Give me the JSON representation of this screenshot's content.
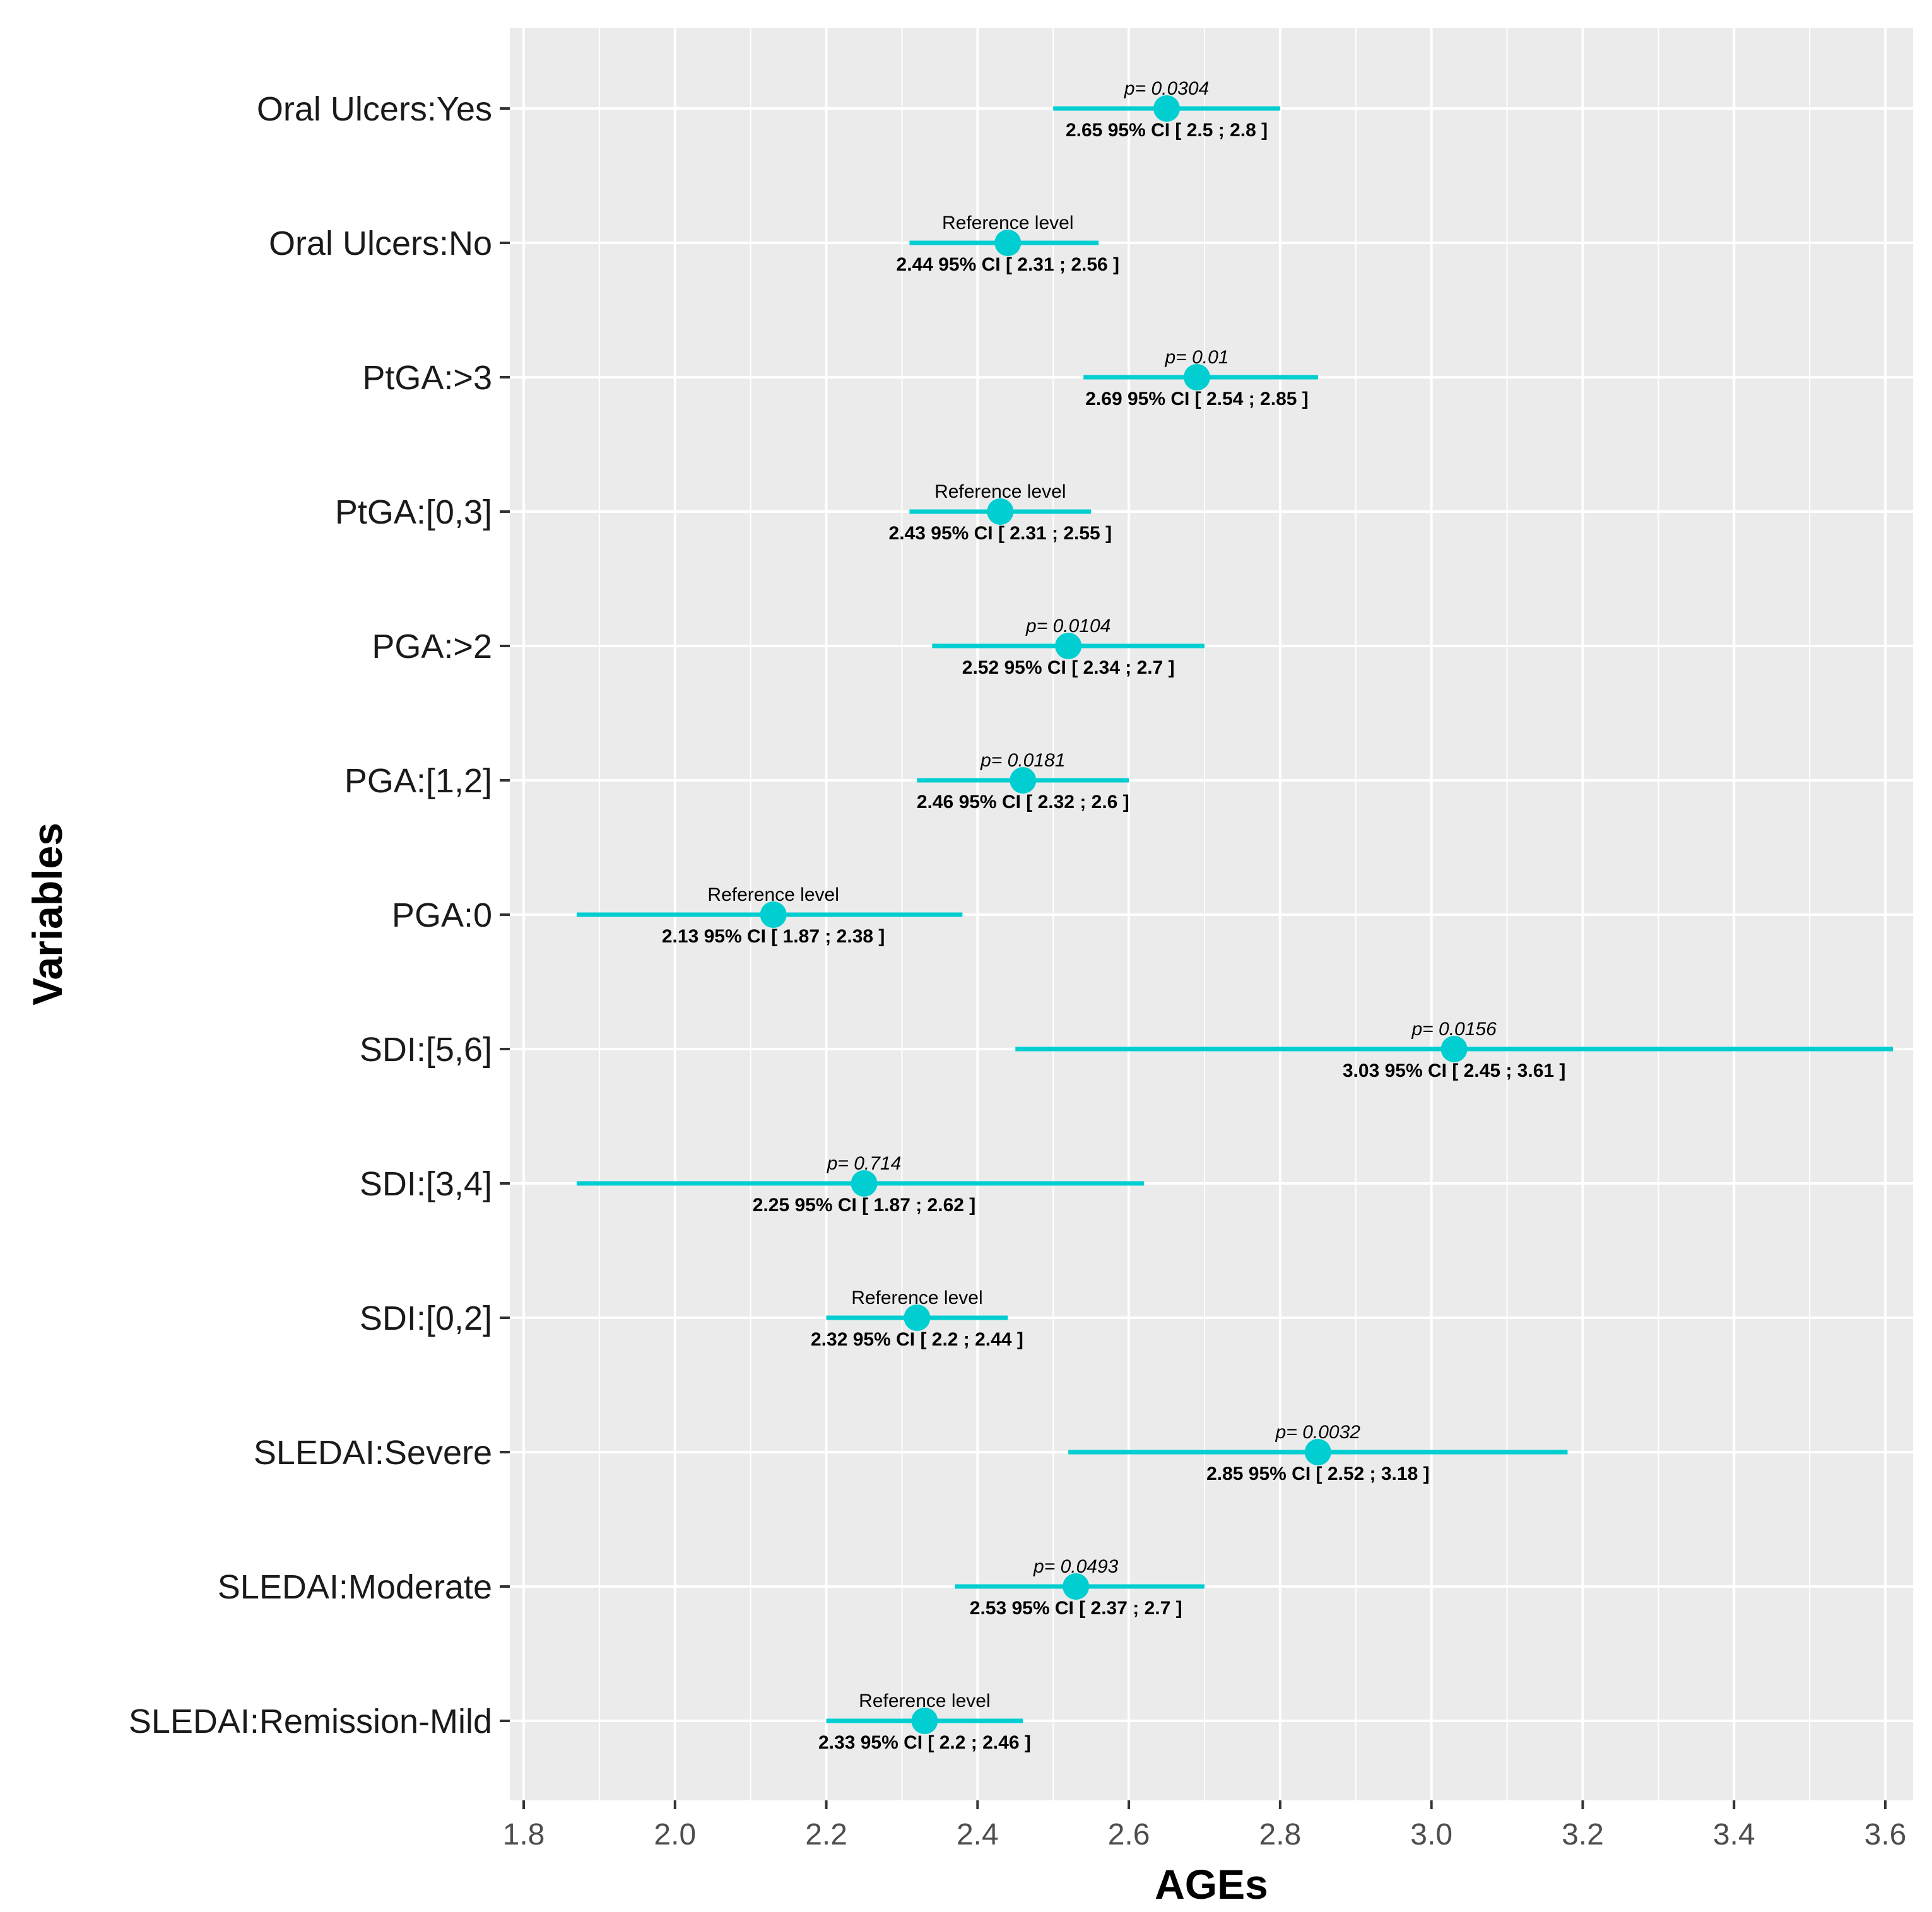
{
  "chart_data": {
    "type": "forest",
    "xlabel": "AGEs",
    "ylabel": "Variables",
    "xlim": [
      1.78,
      3.72
    ],
    "xticks": [
      1.8,
      2.0,
      2.2,
      2.4,
      2.6,
      2.8,
      3.0,
      3.2,
      3.4,
      3.6
    ],
    "xtick_labels": [
      "1.8",
      "2.0",
      "2.2",
      "2.4",
      "2.6",
      "2.8",
      "3.0",
      "3.2",
      "3.4",
      "3.6"
    ],
    "grid": true,
    "colors": {
      "marker": "#00CED1",
      "panel": "#EBEBEB",
      "grid": "#FFFFFF",
      "p_significant": "#000000",
      "p_nonsignificant": "#666666"
    },
    "rows": [
      {
        "label": "Oral Ulcers:Yes",
        "estimate": 2.65,
        "ci_low": 2.5,
        "ci_high": 2.8,
        "top_text": "p= 0.0304",
        "bottom_text": "2.65 95% CI [ 2.5 ; 2.8 ]",
        "is_p": true,
        "significant": true
      },
      {
        "label": "Oral Ulcers:No",
        "estimate": 2.44,
        "ci_low": 2.31,
        "ci_high": 2.56,
        "top_text": "Reference level",
        "bottom_text": "2.44 95% CI [ 2.31 ; 2.56 ]",
        "is_p": false,
        "significant": true
      },
      {
        "label": "PtGA:>3",
        "estimate": 2.69,
        "ci_low": 2.54,
        "ci_high": 2.85,
        "top_text": "p= 0.01",
        "bottom_text": "2.69 95% CI [ 2.54 ; 2.85 ]",
        "is_p": true,
        "significant": true
      },
      {
        "label": "PtGA:[0,3]",
        "estimate": 2.43,
        "ci_low": 2.31,
        "ci_high": 2.55,
        "top_text": "Reference level",
        "bottom_text": "2.43 95% CI [ 2.31 ; 2.55 ]",
        "is_p": false,
        "significant": true
      },
      {
        "label": "PGA:>2",
        "estimate": 2.52,
        "ci_low": 2.34,
        "ci_high": 2.7,
        "top_text": "p= 0.0104",
        "bottom_text": "2.52 95% CI [ 2.34 ; 2.7 ]",
        "is_p": true,
        "significant": true
      },
      {
        "label": "PGA:[1,2]",
        "estimate": 2.46,
        "ci_low": 2.32,
        "ci_high": 2.6,
        "top_text": "p= 0.0181",
        "bottom_text": "2.46 95% CI [ 2.32 ; 2.6 ]",
        "is_p": true,
        "significant": true
      },
      {
        "label": "PGA:0",
        "estimate": 2.13,
        "ci_low": 1.87,
        "ci_high": 2.38,
        "top_text": "Reference level",
        "bottom_text": "2.13 95% CI [ 1.87 ; 2.38 ]",
        "is_p": false,
        "significant": true
      },
      {
        "label": "SDI:[5,6]",
        "estimate": 3.03,
        "ci_low": 2.45,
        "ci_high": 3.61,
        "top_text": "p= 0.0156",
        "bottom_text": "3.03 95% CI [ 2.45 ; 3.61 ]",
        "is_p": true,
        "significant": true
      },
      {
        "label": "SDI:[3,4]",
        "estimate": 2.25,
        "ci_low": 1.87,
        "ci_high": 2.62,
        "top_text": "p= 0.714",
        "bottom_text": "2.25 95% CI [ 1.87 ; 2.62 ]",
        "is_p": true,
        "significant": false
      },
      {
        "label": "SDI:[0,2]",
        "estimate": 2.32,
        "ci_low": 2.2,
        "ci_high": 2.44,
        "top_text": "Reference level",
        "bottom_text": "2.32 95% CI [ 2.2 ; 2.44 ]",
        "is_p": false,
        "significant": true
      },
      {
        "label": "SLEDAI:Severe",
        "estimate": 2.85,
        "ci_low": 2.52,
        "ci_high": 3.18,
        "top_text": "p= 0.0032",
        "bottom_text": "2.85 95% CI [ 2.52 ; 3.18 ]",
        "is_p": true,
        "significant": true
      },
      {
        "label": "SLEDAI:Moderate",
        "estimate": 2.53,
        "ci_low": 2.37,
        "ci_high": 2.7,
        "top_text": "p= 0.0493",
        "bottom_text": "2.53 95% CI [ 2.37 ; 2.7 ]",
        "is_p": true,
        "significant": true
      },
      {
        "label": "SLEDAI:Remission-Mild",
        "estimate": 2.33,
        "ci_low": 2.2,
        "ci_high": 2.46,
        "top_text": "Reference level",
        "bottom_text": "2.33 95% CI [ 2.2 ; 2.46 ]",
        "is_p": false,
        "significant": true
      }
    ]
  }
}
